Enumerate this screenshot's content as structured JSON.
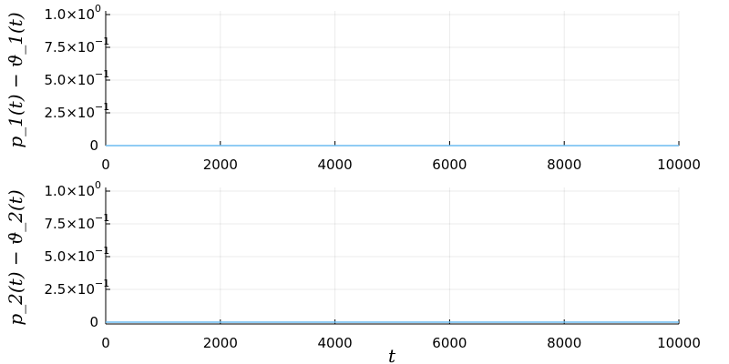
{
  "chart_data": [
    {
      "type": "line",
      "ylabel": "p_1(t) − ϑ_1(t)",
      "xlabel": "",
      "xlim": [
        0,
        10000
      ],
      "ylim": [
        0,
        1.0
      ],
      "xticks": [
        0,
        2000,
        4000,
        6000,
        8000,
        10000
      ],
      "xtick_labels": [
        "0",
        "2000",
        "4000",
        "6000",
        "8000",
        "10000"
      ],
      "yticks": [
        0,
        0.25,
        0.5,
        0.75,
        1.0
      ],
      "ytick_labels": [
        [
          "0",
          ""
        ],
        [
          "2.5×10",
          "−1"
        ],
        [
          "5.0×10",
          "−1"
        ],
        [
          "7.5×10",
          "−1"
        ],
        [
          "1.0×10",
          "0"
        ]
      ],
      "grid": true,
      "series": [
        {
          "x": [
            0,
            10000
          ],
          "y": [
            0,
            0
          ],
          "color": "#6bbcf0"
        }
      ]
    },
    {
      "type": "line",
      "ylabel": "p_2(t) − ϑ_2(t)",
      "xlabel": "t",
      "xlim": [
        0,
        10000
      ],
      "ylim": [
        0,
        1.0
      ],
      "xticks": [
        0,
        2000,
        4000,
        6000,
        8000,
        10000
      ],
      "xtick_labels": [
        "0",
        "2000",
        "4000",
        "6000",
        "8000",
        "10000"
      ],
      "yticks": [
        0,
        0.25,
        0.5,
        0.75,
        1.0
      ],
      "ytick_labels": [
        [
          "0",
          ""
        ],
        [
          "2.5×10",
          "−1"
        ],
        [
          "5.0×10",
          "−1"
        ],
        [
          "7.5×10",
          "−1"
        ],
        [
          "1.0×10",
          "0"
        ]
      ],
      "grid": true,
      "series": [
        {
          "x": [
            0,
            10000
          ],
          "y": [
            0,
            0
          ],
          "color": "#6bbcf0"
        }
      ]
    }
  ]
}
